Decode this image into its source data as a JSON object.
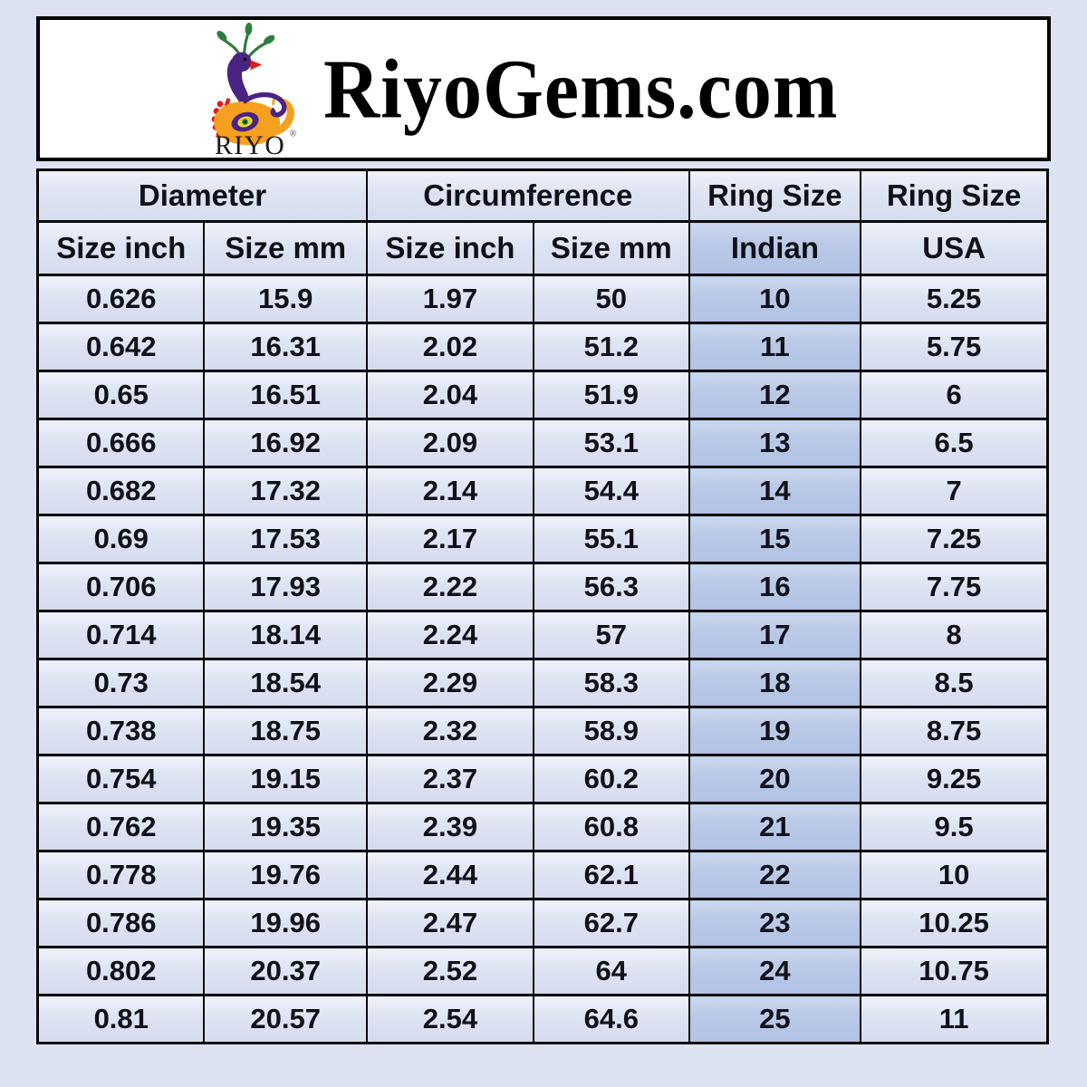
{
  "header": {
    "brand_title": "RiyoGems.com",
    "logo_text": "RIYO",
    "registered_mark": "®"
  },
  "chart_data": {
    "type": "table",
    "group_headers": [
      {
        "label": "Diameter",
        "span": 2
      },
      {
        "label": "Circumference",
        "span": 2
      },
      {
        "label": "Ring Size",
        "span": 1
      },
      {
        "label": "Ring Size",
        "span": 1
      }
    ],
    "columns": [
      "Size inch",
      "Size mm",
      "Size inch",
      "Size mm",
      "Indian",
      "USA"
    ],
    "column_keys": [
      "diameter-size-inch",
      "diameter-size-mm",
      "circumference-size-inch",
      "circumference-size-mm",
      "ring-size-indian",
      "ring-size-usa"
    ],
    "highlighted_column": "Indian",
    "rows": [
      [
        "0.626",
        "15.9",
        "1.97",
        "50",
        "10",
        "5.25"
      ],
      [
        "0.642",
        "16.31",
        "2.02",
        "51.2",
        "11",
        "5.75"
      ],
      [
        "0.65",
        "16.51",
        "2.04",
        "51.9",
        "12",
        "6"
      ],
      [
        "0.666",
        "16.92",
        "2.09",
        "53.1",
        "13",
        "6.5"
      ],
      [
        "0.682",
        "17.32",
        "2.14",
        "54.4",
        "14",
        "7"
      ],
      [
        "0.69",
        "17.53",
        "2.17",
        "55.1",
        "15",
        "7.25"
      ],
      [
        "0.706",
        "17.93",
        "2.22",
        "56.3",
        "16",
        "7.75"
      ],
      [
        "0.714",
        "18.14",
        "2.24",
        "57",
        "17",
        "8"
      ],
      [
        "0.73",
        "18.54",
        "2.29",
        "58.3",
        "18",
        "8.5"
      ],
      [
        "0.738",
        "18.75",
        "2.32",
        "58.9",
        "19",
        "8.75"
      ],
      [
        "0.754",
        "19.15",
        "2.37",
        "60.2",
        "20",
        "9.25"
      ],
      [
        "0.762",
        "19.35",
        "2.39",
        "60.8",
        "21",
        "9.5"
      ],
      [
        "0.778",
        "19.76",
        "2.44",
        "62.1",
        "22",
        "10"
      ],
      [
        "0.786",
        "19.96",
        "2.47",
        "62.7",
        "23",
        "10.25"
      ],
      [
        "0.802",
        "20.37",
        "2.52",
        "64",
        "24",
        "10.75"
      ],
      [
        "0.81",
        "20.57",
        "2.54",
        "64.6",
        "25",
        "11"
      ]
    ]
  },
  "colors": {
    "page_background": "#dce2f2",
    "cell_fill_light": "#d8dff0",
    "cell_fill_indian": "#b4c5e4",
    "border": "#0a0a0a",
    "logo_green": "#2e7d3f",
    "logo_purple": "#4a2482",
    "logo_orange": "#f5a01e",
    "logo_red": "#e11c1c",
    "logo_eye_yellow": "#e8d52e"
  }
}
